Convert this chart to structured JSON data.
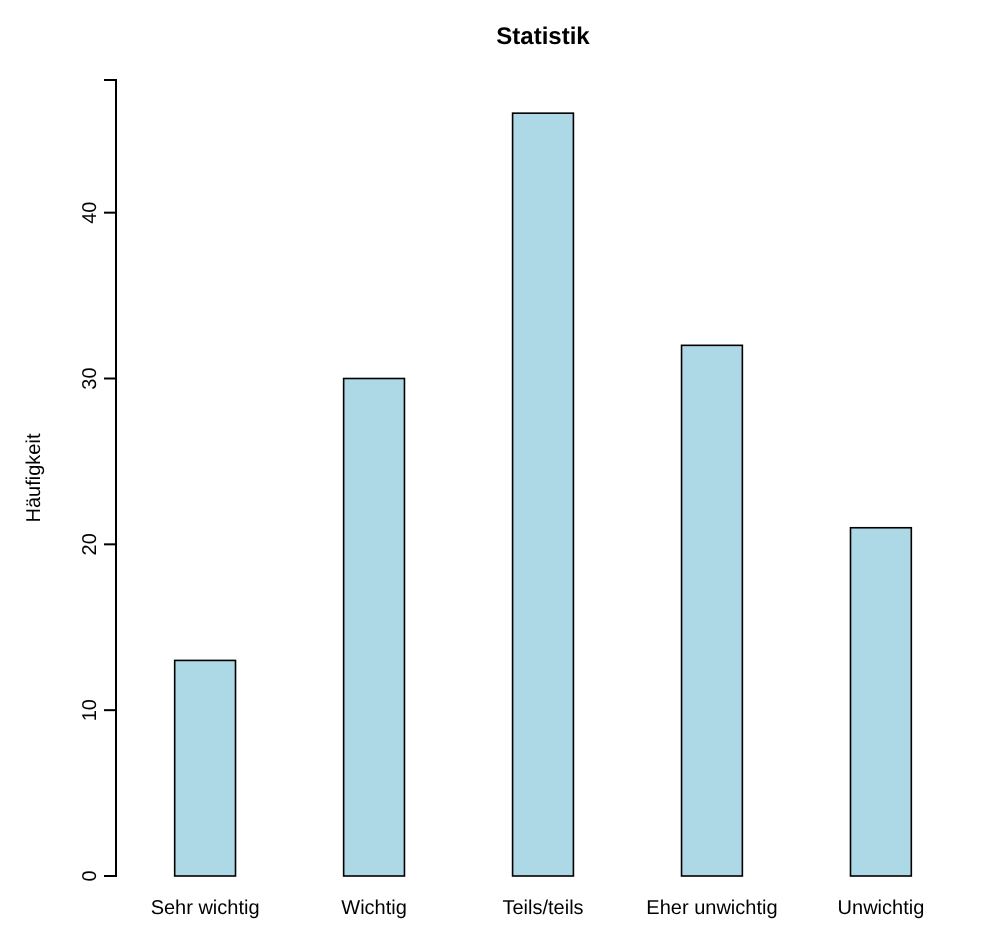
{
  "chart_data": {
    "type": "bar",
    "title": "Statistik",
    "ylabel": "Häufigkeit",
    "categories": [
      "Sehr wichtig",
      "Wichtig",
      "Teils/teils",
      "Eher unwichtig",
      "Unwichtig"
    ],
    "values": [
      13,
      30,
      46,
      32,
      21
    ],
    "color": "#add8e6",
    "ylim": [
      0,
      48
    ],
    "yticks": [
      0,
      10,
      20,
      30,
      40
    ]
  }
}
